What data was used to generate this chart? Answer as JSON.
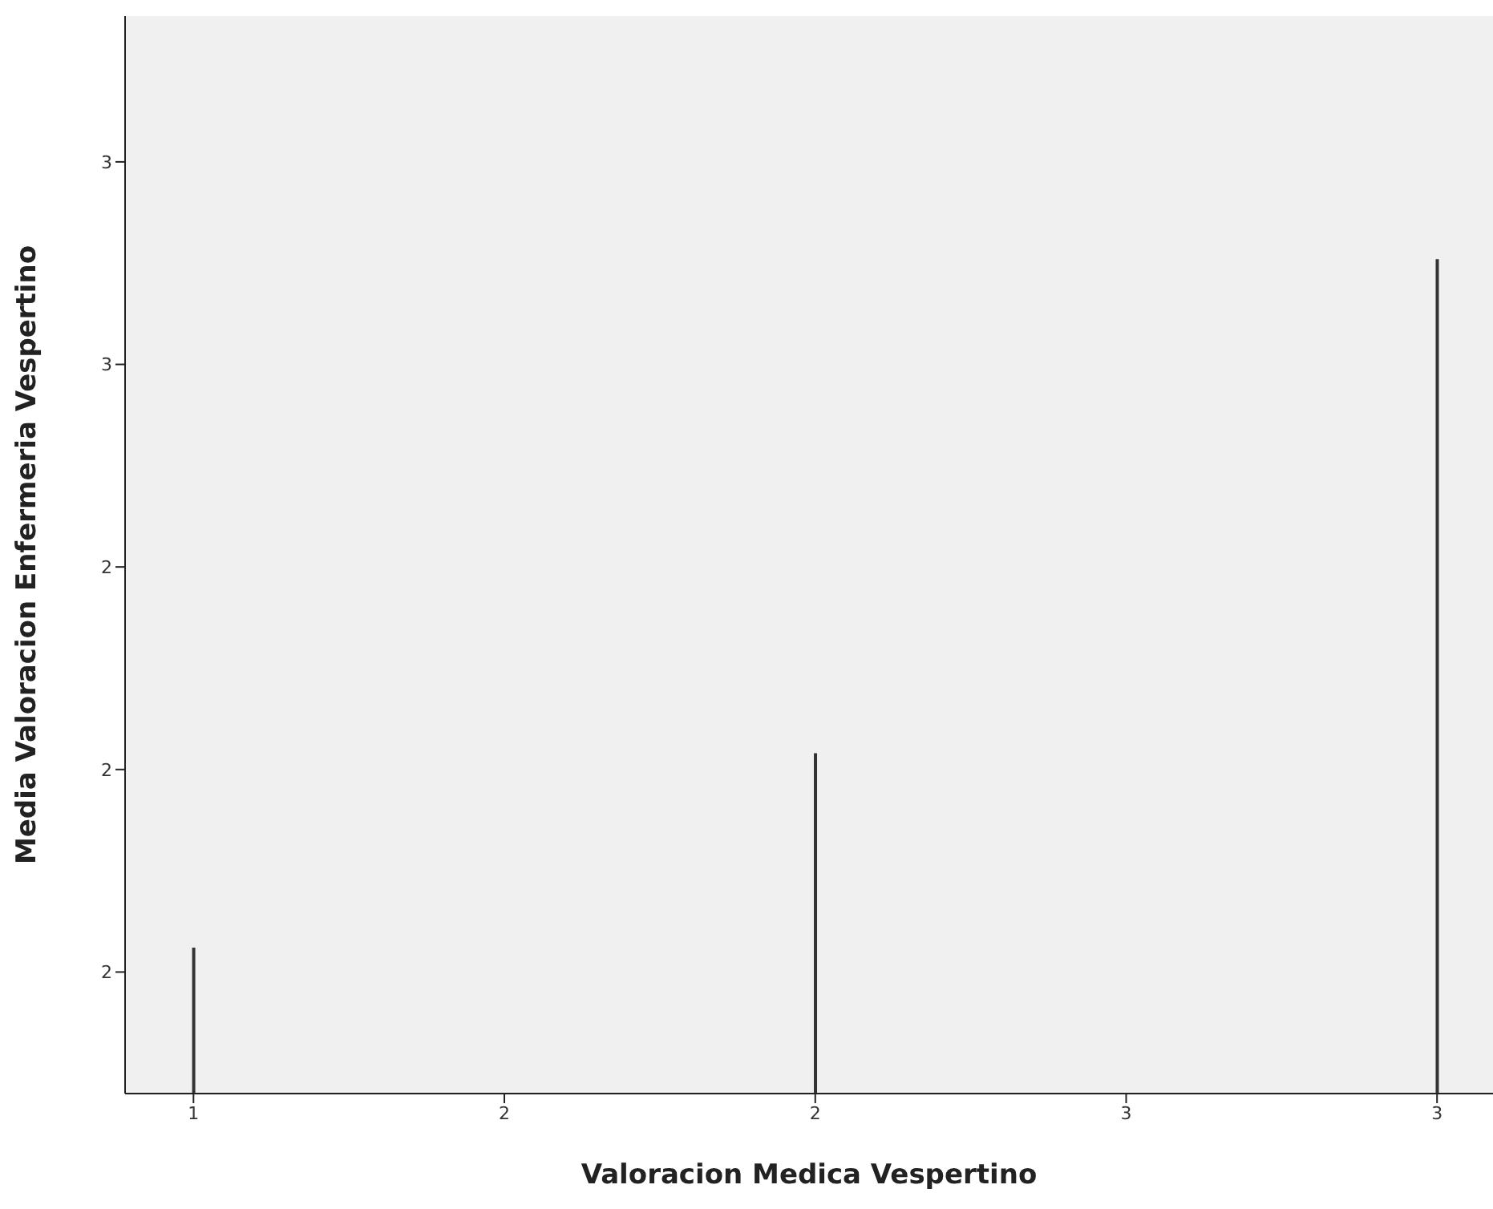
{
  "chart_data": {
    "type": "bar",
    "xlabel": "Valoracion Medica  Vespertino",
    "ylabel": "Media Valoracion Enfermeria Vespertino",
    "x": [
      1,
      2,
      3
    ],
    "values": [
      1.78,
      2.02,
      2.63
    ],
    "color": "#333333",
    "xlim": [
      0.89,
      3.09
    ],
    "xticks": [
      {
        "value": 1,
        "label": "1"
      },
      {
        "value": 1.5,
        "label": "2"
      },
      {
        "value": 2,
        "label": "2"
      },
      {
        "value": 2.5,
        "label": "3"
      },
      {
        "value": 3,
        "label": "3"
      }
    ],
    "ylim": [
      1.6,
      2.93
    ],
    "yticks": [
      {
        "value": 1.75,
        "label": "2"
      },
      {
        "value": 2,
        "label": "2"
      },
      {
        "value": 2.25,
        "label": "2"
      },
      {
        "value": 2.5,
        "label": "3"
      },
      {
        "value": 2.75,
        "label": "3"
      }
    ],
    "grid": false,
    "legend": false
  }
}
